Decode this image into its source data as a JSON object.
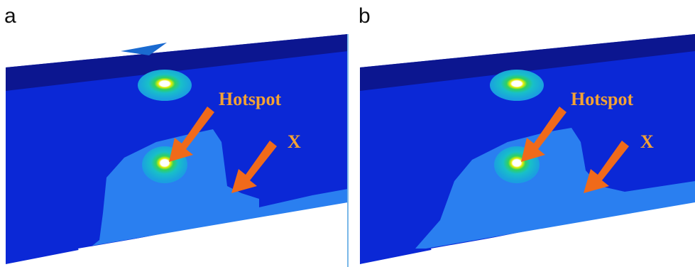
{
  "panels": [
    {
      "label": "a",
      "annotations": [
        "Hotspot",
        "X"
      ]
    },
    {
      "label": "b",
      "annotations": [
        "Hotspot",
        "X"
      ]
    }
  ]
}
